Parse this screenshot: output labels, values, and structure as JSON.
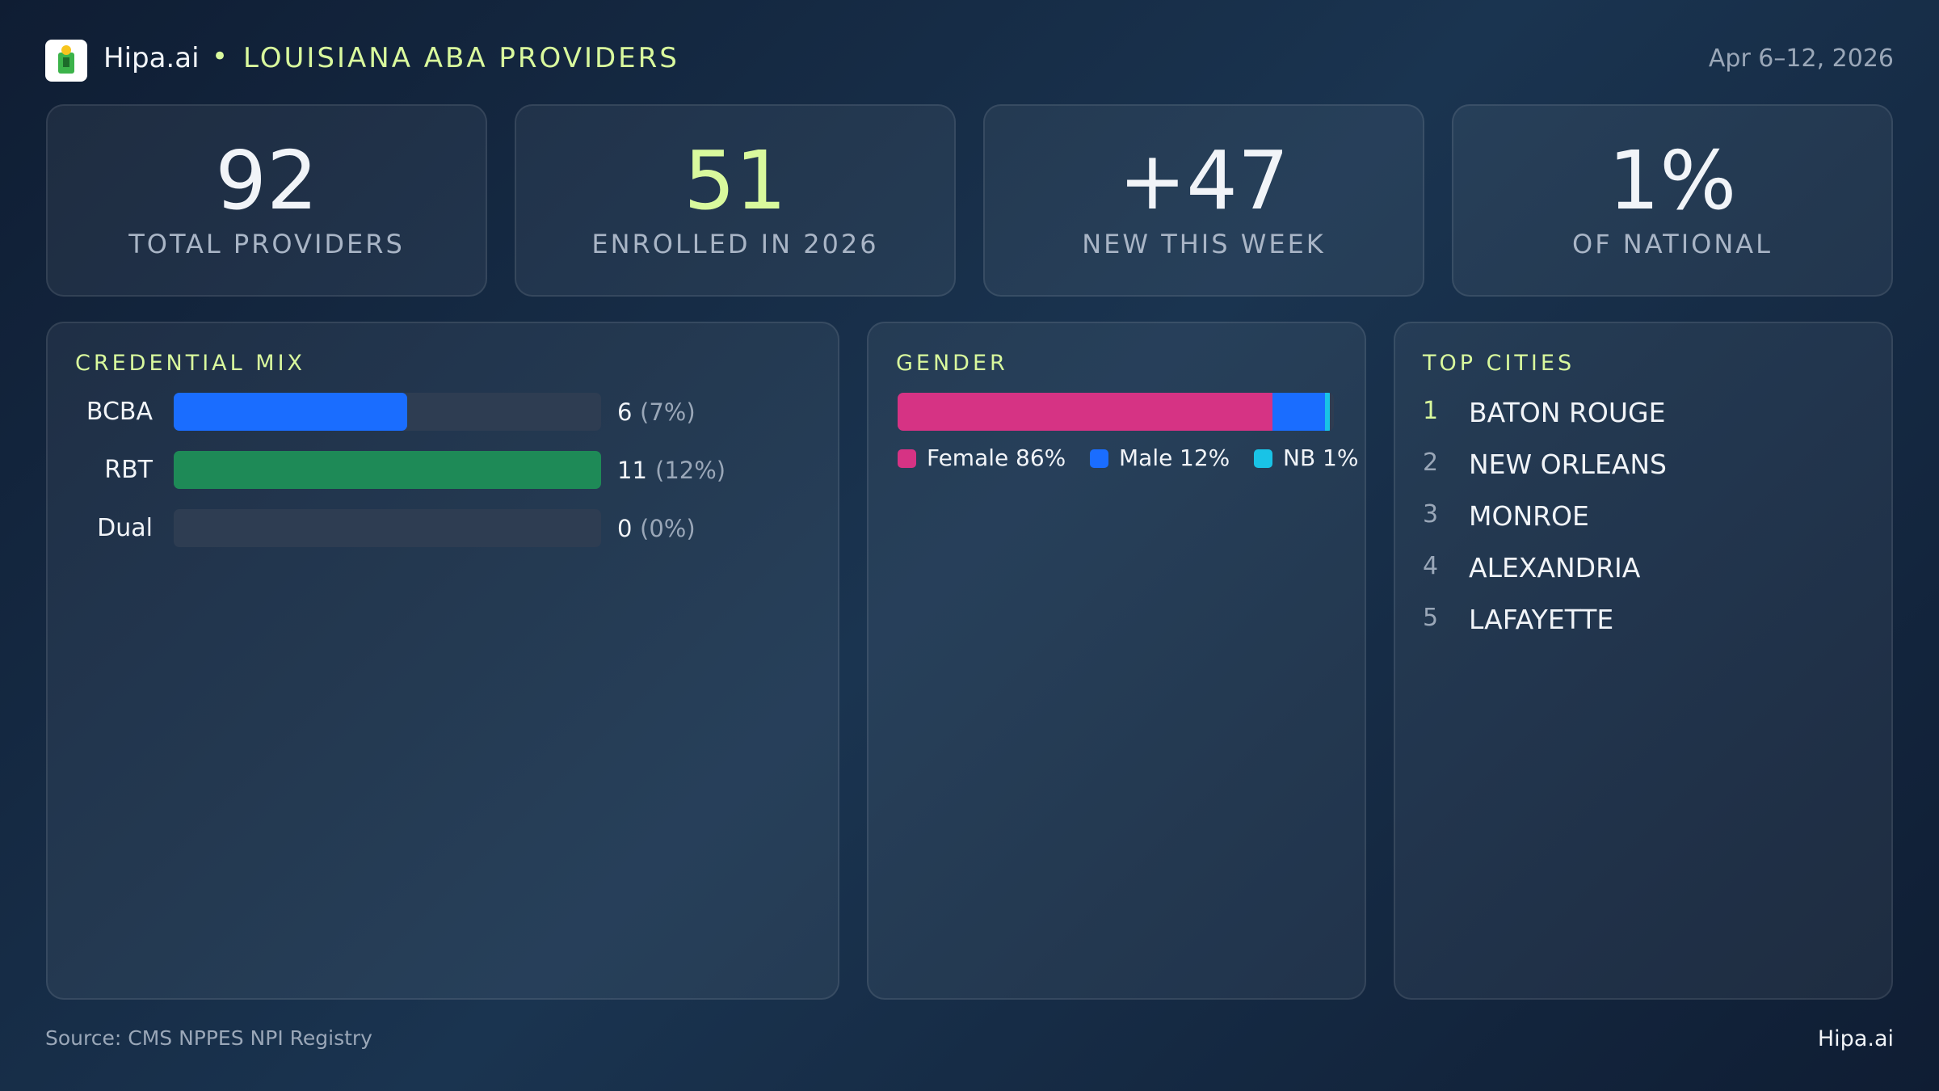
{
  "header": {
    "brand": "Hipa.ai",
    "title": "LOUISIANA ABA PROVIDERS",
    "date": "Apr 6–12, 2026"
  },
  "kpis": [
    {
      "value": 92,
      "label": "TOTAL PROVIDERS",
      "accent": false
    },
    {
      "value": 51,
      "label": "ENROLLED IN 2026",
      "accent": true
    },
    {
      "value": "+47",
      "label": "NEW THIS WEEK",
      "accent": false
    },
    {
      "value": "1%",
      "label": "OF NATIONAL",
      "accent": false
    }
  ],
  "credential_mix": {
    "type": "bar",
    "title": "CREDENTIAL MIX",
    "categories": [
      "BCBA",
      "RBT",
      "Dual"
    ],
    "values": [
      6,
      11,
      0
    ],
    "percent_labels": [
      "(7%)",
      "(12%)",
      "(0%)"
    ],
    "colors": [
      "#1a6dff",
      "#1e8a57",
      "#1a6dff"
    ],
    "xlim": [
      0,
      11
    ]
  },
  "gender": {
    "type": "stacked-bar",
    "title": "GENDER",
    "xlim": [
      0,
      100
    ],
    "series": [
      {
        "name": "Female",
        "color": "#d63384",
        "value": 86,
        "value_label": "86%"
      },
      {
        "name": "Male",
        "color": "#1a6dff",
        "value": 12,
        "value_label": "12%"
      },
      {
        "name": "NB",
        "color": "#19c3e6",
        "value": 1,
        "value_label": "1%"
      }
    ]
  },
  "top_cities": {
    "title": "TOP CITIES",
    "items": [
      {
        "rank": 1,
        "name": "BATON ROUGE"
      },
      {
        "rank": 2,
        "name": "NEW ORLEANS"
      },
      {
        "rank": 3,
        "name": "MONROE"
      },
      {
        "rank": 4,
        "name": "ALEXANDRIA"
      },
      {
        "rank": 5,
        "name": "LAFAYETTE"
      }
    ]
  },
  "footer": {
    "source": "Source: CMS NPPES NPI Registry",
    "brand": "Hipa.ai"
  }
}
